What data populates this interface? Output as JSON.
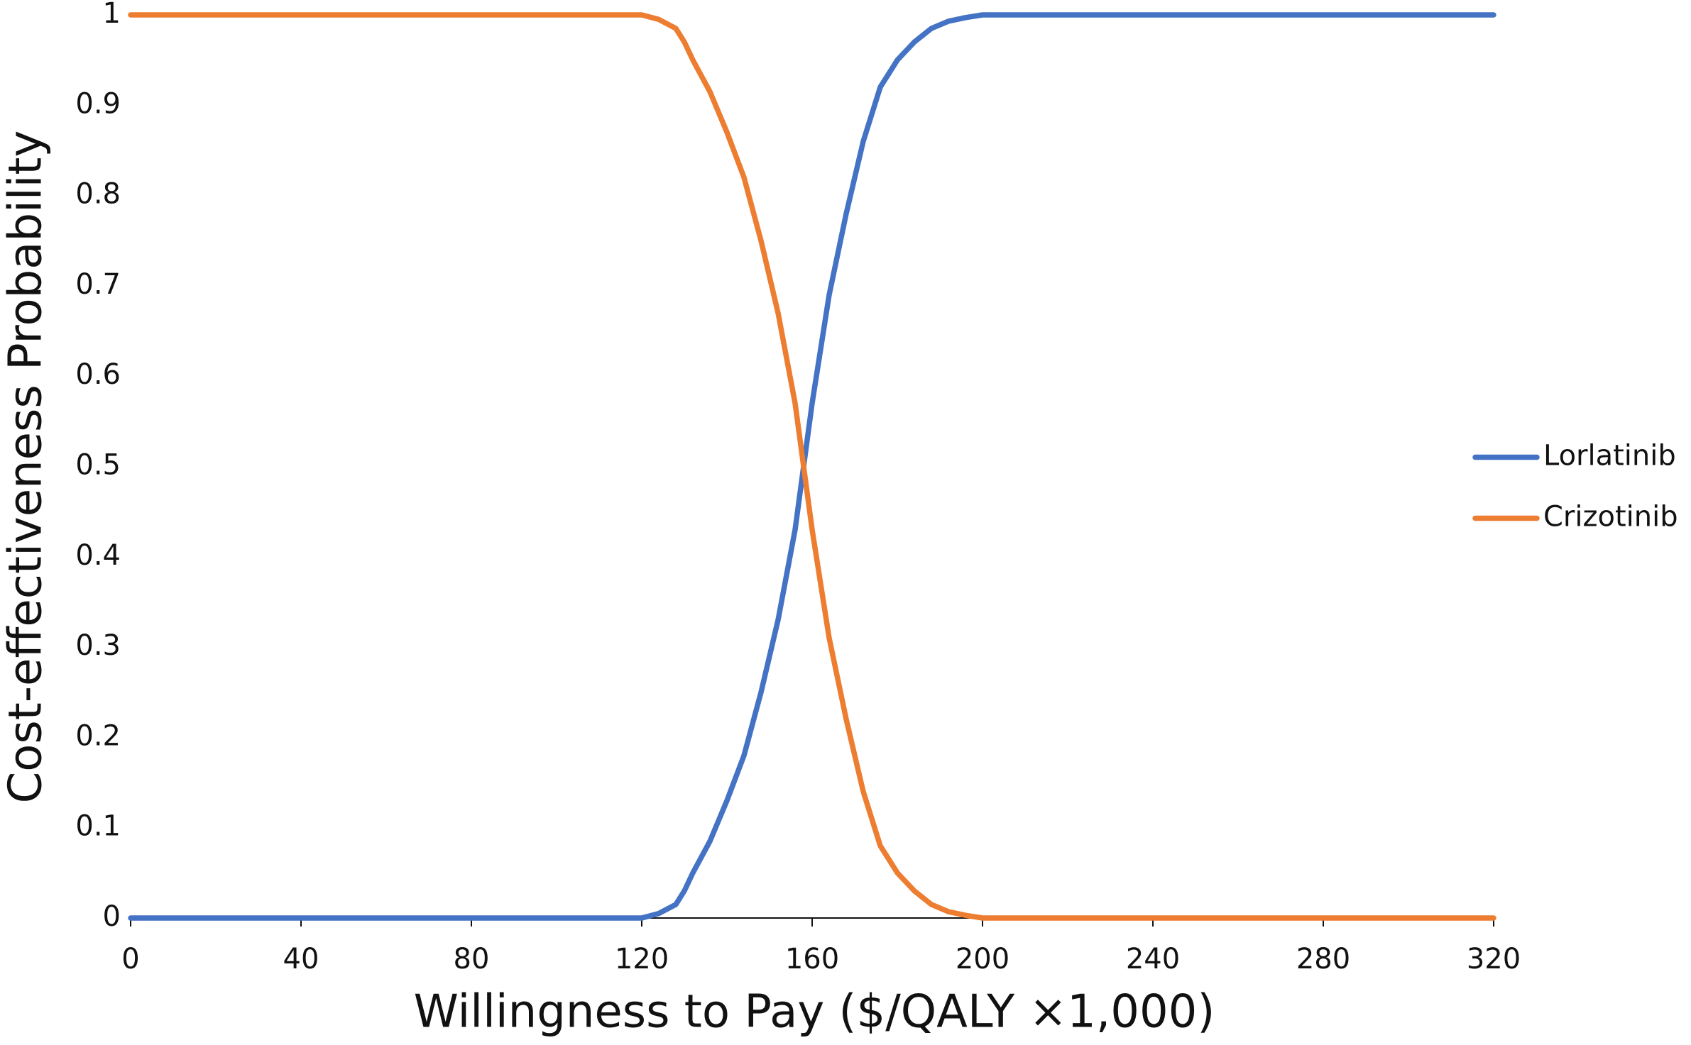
{
  "chart_data": {
    "type": "line",
    "xlabel": "Willingness to Pay ($/QALY ×1,000)",
    "ylabel": "Cost-effectiveness Probability",
    "x": [
      0,
      120,
      124,
      128,
      130,
      132,
      136,
      140,
      144,
      148,
      152,
      156,
      158,
      160,
      164,
      168,
      172,
      176,
      180,
      184,
      188,
      192,
      196,
      200,
      320
    ],
    "series": [
      {
        "name": "Lorlatinib",
        "color": "#4472c4",
        "values": [
          0,
          0,
          0.005,
          0.015,
          0.03,
          0.05,
          0.085,
          0.13,
          0.18,
          0.25,
          0.33,
          0.43,
          0.5,
          0.57,
          0.69,
          0.78,
          0.86,
          0.92,
          0.95,
          0.97,
          0.985,
          0.993,
          0.997,
          1,
          1
        ]
      },
      {
        "name": "Crizotinib",
        "color": "#ed7d31",
        "values": [
          1,
          1,
          0.995,
          0.985,
          0.97,
          0.95,
          0.915,
          0.87,
          0.82,
          0.75,
          0.67,
          0.57,
          0.5,
          0.43,
          0.31,
          0.22,
          0.14,
          0.08,
          0.05,
          0.03,
          0.015,
          0.007,
          0.003,
          0,
          0
        ]
      }
    ],
    "xlim": [
      0,
      320
    ],
    "xticks": [
      0,
      40,
      80,
      120,
      160,
      200,
      240,
      280,
      320
    ],
    "ylim": [
      0,
      1
    ],
    "yticks": [
      0,
      0.1,
      0.2,
      0.3,
      0.4,
      0.5,
      0.6,
      0.7,
      0.8,
      0.9,
      1
    ],
    "grid": false,
    "legend": "right"
  }
}
